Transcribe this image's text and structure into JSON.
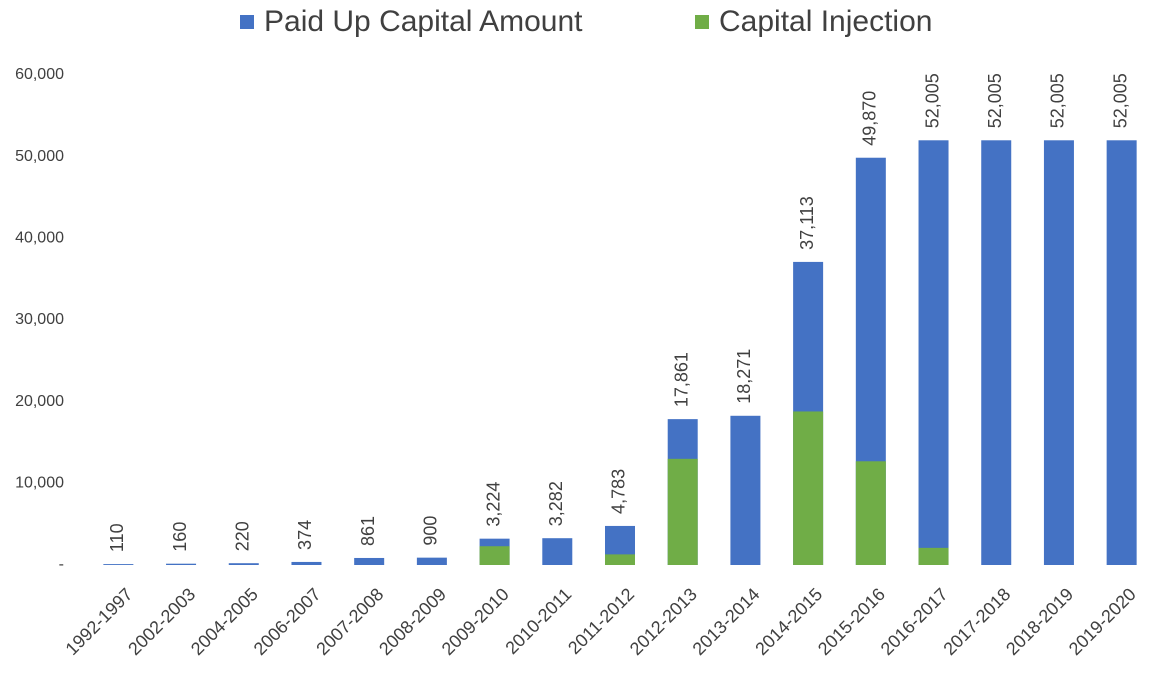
{
  "chart_data": {
    "type": "bar",
    "categories": [
      "1992-1997",
      "2002-2003",
      "2004-2005",
      "2006-2007",
      "2007-2008",
      "2008-2009",
      "2009-2010",
      "2010-2011",
      "2011-2012",
      "2012-2013",
      "2013-2014",
      "2014-2015",
      "2015-2016",
      "2016-2017",
      "2017-2018",
      "2018-2019",
      "2019-2020"
    ],
    "series": [
      {
        "name": "Paid Up Capital Amount",
        "color": "#4472c4",
        "values": [
          110,
          160,
          220,
          374,
          861,
          900,
          3224,
          3282,
          4783,
          17861,
          18271,
          37113,
          49870,
          52005,
          52005,
          52005,
          52005
        ],
        "value_labels": [
          "110",
          "160",
          "220",
          "374",
          "861",
          "900",
          "3,224",
          "3,282",
          "4,783",
          "17,861",
          "18,271",
          "37,113",
          "49,870",
          "52,005",
          "52,005",
          "52,005",
          "52,005"
        ]
      },
      {
        "name": "Capital Injection",
        "color": "#70ad47",
        "values": [
          null,
          null,
          null,
          null,
          null,
          null,
          2300,
          null,
          1300,
          13000,
          null,
          18800,
          12700,
          2100,
          null,
          null,
          null
        ]
      }
    ],
    "ylim": [
      0,
      60000
    ],
    "yticks": [
      {
        "value": 0,
        "label": "-"
      },
      {
        "value": 10000,
        "label": "10,000"
      },
      {
        "value": 20000,
        "label": "20,000"
      },
      {
        "value": 30000,
        "label": "30,000"
      },
      {
        "value": 40000,
        "label": "40,000"
      },
      {
        "value": 50000,
        "label": "50,000"
      },
      {
        "value": 60000,
        "label": "60,000"
      }
    ],
    "legend": "top"
  }
}
